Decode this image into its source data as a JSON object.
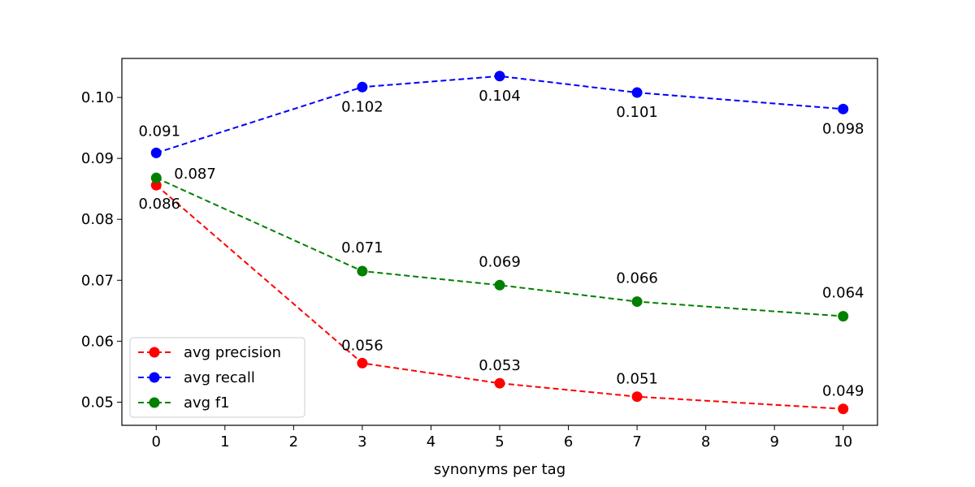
{
  "chart_data": {
    "type": "line",
    "title": "",
    "xlabel": "synonyms per tag",
    "ylabel": "",
    "x": [
      0,
      3,
      5,
      7,
      10
    ],
    "xlim": [
      -0.5,
      10.5
    ],
    "ylim": [
      0.0462,
      0.1064
    ],
    "xticks": [
      0,
      1,
      2,
      3,
      4,
      5,
      6,
      7,
      8,
      9,
      10
    ],
    "yticks": [
      0.05,
      0.06,
      0.07,
      0.08,
      0.09,
      0.1
    ],
    "ytick_labels": [
      "0.05",
      "0.06",
      "0.07",
      "0.08",
      "0.09",
      "0.10"
    ],
    "grid": false,
    "legend_position": "lower-left",
    "series": [
      {
        "name": "avg precision",
        "color": "#ff0000",
        "values": [
          0.0856,
          0.0564,
          0.0531,
          0.0509,
          0.0489
        ],
        "labels": [
          "0.086",
          "0.056",
          "0.053",
          "0.051",
          "0.049"
        ]
      },
      {
        "name": "avg recall",
        "color": "#0000ff",
        "values": [
          0.0909,
          0.1017,
          0.1035,
          0.1008,
          0.0981
        ],
        "labels": [
          "0.091",
          "0.102",
          "0.104",
          "0.101",
          "0.098"
        ]
      },
      {
        "name": "avg f1",
        "color": "#008000",
        "values": [
          0.0868,
          0.0715,
          0.0692,
          0.0665,
          0.0641
        ],
        "labels": [
          "0.087",
          "0.071",
          "0.069",
          "0.066",
          "0.064"
        ]
      }
    ]
  }
}
